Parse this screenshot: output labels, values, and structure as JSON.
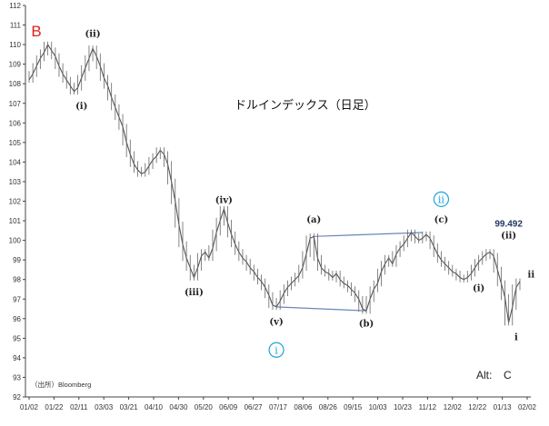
{
  "chart_data": {
    "type": "line",
    "title": "ドルインデックス（日足）",
    "source": "（出所）Bloomberg",
    "ylim": [
      92,
      112
    ],
    "y_ticks": [
      92,
      93,
      94,
      95,
      96,
      97,
      98,
      99,
      100,
      101,
      102,
      103,
      104,
      105,
      106,
      107,
      108,
      109,
      110,
      111,
      112
    ],
    "x_ticks": [
      "01/02",
      "01/22",
      "02/11",
      "03/03",
      "03/21",
      "04/10",
      "04/30",
      "05/20",
      "06/09",
      "06/27",
      "07/17",
      "08/06",
      "08/26",
      "09/15",
      "10/03",
      "10/23",
      "11/12",
      "12/02",
      "12/22",
      "01/13",
      "02/02"
    ],
    "grid": false,
    "series": [
      {
        "values": [
          108.2,
          108.5,
          108.9,
          109.3,
          109.6,
          110.0,
          109.7,
          109.4,
          108.9,
          108.5,
          108.2,
          107.9,
          107.6,
          107.8,
          108.3,
          108.8,
          109.3,
          109.8,
          109.4,
          108.9,
          108.3,
          107.9,
          107.3,
          106.8,
          106.3,
          105.8,
          105.0,
          104.4,
          103.9,
          103.6,
          103.4,
          103.5,
          103.8,
          104.1,
          104.3,
          104.6,
          104.4,
          103.9,
          103.0,
          102.0,
          100.8,
          99.8,
          99.1,
          98.6,
          98.1,
          98.6,
          99.2,
          99.4,
          99.1,
          99.6,
          100.4,
          101.0,
          101.6,
          100.9,
          100.3,
          99.8,
          99.4,
          99.1,
          98.9,
          98.6,
          98.4,
          98.1,
          97.9,
          97.6,
          97.2,
          96.7,
          96.6,
          96.9,
          97.3,
          97.6,
          97.8,
          98.0,
          98.2,
          98.6,
          99.3,
          100.1,
          100.2,
          99.1,
          98.6,
          98.4,
          98.3,
          98.1,
          98.3,
          98.0,
          97.8,
          97.7,
          97.5,
          97.3,
          97.0,
          96.5,
          96.4,
          97.0,
          97.5,
          97.8,
          98.4,
          98.8,
          99.1,
          98.8,
          99.3,
          99.6,
          99.8,
          100.1,
          100.4,
          100.2,
          100.0,
          100.1,
          100.3,
          100.1,
          99.7,
          99.3,
          99.0,
          98.8,
          98.6,
          98.4,
          98.3,
          98.1,
          98.0,
          98.1,
          98.3,
          98.6,
          98.9,
          99.1,
          99.3,
          99.4,
          99.2,
          98.5,
          97.8,
          97.1,
          95.8,
          96.6,
          97.6,
          97.9
        ]
      }
    ],
    "trendlines": [
      {
        "from": [
          76,
          100.2
        ],
        "to": [
          105,
          100.4
        ]
      },
      {
        "from": [
          66,
          96.6
        ],
        "to": [
          90,
          96.4
        ]
      }
    ],
    "annotations": [
      {
        "text": "B",
        "x": 0,
        "y": 110.9,
        "color": "#e02020",
        "kind": "corner"
      },
      {
        "text": "(ii)",
        "x": 17,
        "y": 110.4,
        "kind": "wave"
      },
      {
        "text": "(i)",
        "x": 14,
        "y": 106.7,
        "kind": "wave"
      },
      {
        "text": "(iii)",
        "x": 44,
        "y": 97.2,
        "kind": "wave"
      },
      {
        "text": "(iv)",
        "x": 52,
        "y": 101.9,
        "kind": "wave"
      },
      {
        "text": "(v)",
        "x": 66,
        "y": 95.7,
        "kind": "wave"
      },
      {
        "text": "i",
        "x": 66,
        "y": 94.4,
        "kind": "circle"
      },
      {
        "text": "(a)",
        "x": 76,
        "y": 100.9,
        "kind": "wave"
      },
      {
        "text": "(b)",
        "x": 90,
        "y": 95.6,
        "kind": "wave"
      },
      {
        "text": "(c)",
        "x": 110,
        "y": 100.9,
        "kind": "wave"
      },
      {
        "text": "ii",
        "x": 110,
        "y": 102.1,
        "kind": "circle"
      },
      {
        "text": "(i)",
        "x": 120,
        "y": 97.4,
        "kind": "wave"
      },
      {
        "text": "99.492",
        "x": 128,
        "y": 100.7,
        "color": "#1f3864",
        "kind": "peak"
      },
      {
        "text": "(ii)",
        "x": 128,
        "y": 100.1,
        "kind": "wave"
      },
      {
        "text": "i",
        "x": 130,
        "y": 94.9,
        "kind": "wave"
      },
      {
        "text": "ii",
        "x": 134,
        "y": 98.1,
        "kind": "wave"
      }
    ],
    "alt_label": "Alt:",
    "alt_value": "C",
    "colors": {
      "line": "#555555",
      "trendline": "#6b86b8",
      "circle": "#1ba3d8",
      "red": "#e02020"
    }
  }
}
